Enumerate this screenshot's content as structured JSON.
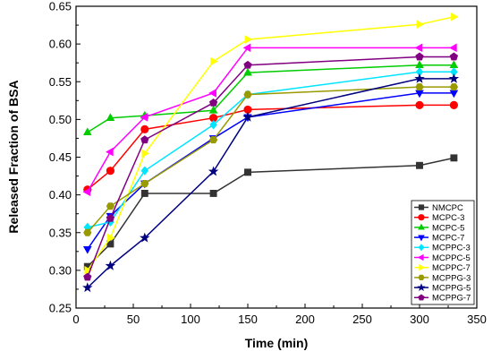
{
  "chart_data": {
    "type": "line",
    "title": "",
    "xlabel": "Time (min)",
    "ylabel": "Released Fraction of BSA",
    "xlim": [
      0,
      350
    ],
    "ylim": [
      0.25,
      0.65
    ],
    "xticks": [
      "0",
      "50",
      "100",
      "150",
      "200",
      "250",
      "300",
      "350"
    ],
    "yticks": [
      "0.25",
      "0.30",
      "0.35",
      "0.40",
      "0.45",
      "0.50",
      "0.55",
      "0.60",
      "0.65"
    ],
    "grid": false,
    "legend_position": "bottom-right",
    "x": [
      10,
      30,
      60,
      120,
      150,
      300,
      330
    ],
    "series": [
      {
        "name": "NMCPC",
        "color": "#333333",
        "marker": "square",
        "values": [
          0.305,
          0.335,
          0.402,
          0.402,
          0.43,
          0.439,
          0.449
        ]
      },
      {
        "name": "MCPC-3",
        "color": "#ff0000",
        "marker": "circle",
        "values": [
          0.407,
          0.432,
          0.487,
          0.502,
          0.513,
          0.519,
          0.519
        ]
      },
      {
        "name": "MCPC-5",
        "color": "#00cc00",
        "marker": "triangle-up",
        "values": [
          0.483,
          0.502,
          0.505,
          0.512,
          0.562,
          0.572,
          0.572
        ]
      },
      {
        "name": "MCPC-7",
        "color": "#0000ff",
        "marker": "triangle-down",
        "values": [
          0.328,
          0.372,
          0.415,
          0.475,
          0.503,
          0.535,
          0.535
        ]
      },
      {
        "name": "MCPPC-3",
        "color": "#00e5ff",
        "marker": "diamond",
        "values": [
          0.357,
          0.364,
          0.432,
          0.493,
          0.533,
          0.563,
          0.563
        ]
      },
      {
        "name": "MCPPC-5",
        "color": "#ff00ff",
        "marker": "triangle-left",
        "values": [
          0.404,
          0.457,
          0.503,
          0.535,
          0.595,
          0.595,
          0.595
        ]
      },
      {
        "name": "MCPPC-7",
        "color": "#ffff00",
        "marker": "triangle-right",
        "values": [
          0.3,
          0.343,
          0.455,
          0.577,
          0.606,
          0.626,
          0.636
        ]
      },
      {
        "name": "MCPPG-3",
        "color": "#999900",
        "marker": "hexagon",
        "values": [
          0.35,
          0.385,
          0.415,
          0.473,
          0.533,
          0.543,
          0.543
        ]
      },
      {
        "name": "MCPPG-5",
        "color": "#000080",
        "marker": "star",
        "values": [
          0.277,
          0.306,
          0.343,
          0.431,
          0.503,
          0.554,
          0.554
        ]
      },
      {
        "name": "MCPPG-7",
        "color": "#800080",
        "marker": "pentagon",
        "values": [
          0.291,
          0.369,
          0.473,
          0.522,
          0.572,
          0.583,
          0.583
        ]
      }
    ]
  }
}
